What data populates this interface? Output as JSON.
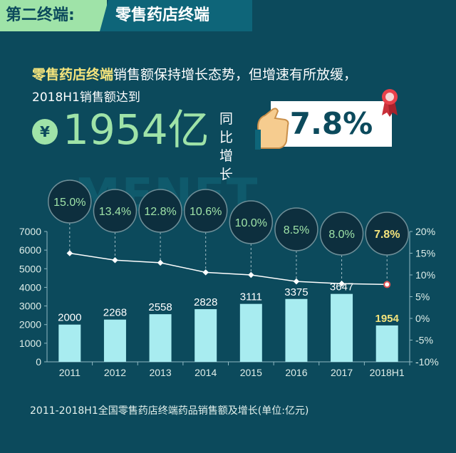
{
  "header": {
    "section": "第二终端:",
    "title": "零售药店终端"
  },
  "intro": {
    "highlight": "零售药店终端",
    "line1_rest": "销售额保持增长态势，但增速有所放缓，",
    "line2": "2018H1销售额达到"
  },
  "headline": {
    "currency_symbol": "¥",
    "amount": "1954亿",
    "yoy_label_top": "同比",
    "yoy_label_bottom": "增长",
    "yoy_value": "7.8%"
  },
  "watermark": "MENET",
  "caption": "2011-2018H1全国零售药店终端药品销售额及增长(单位:亿元)",
  "colors": {
    "background": "#0c4a5c",
    "bar": "#a8ecf0",
    "accent_green": "#9fe3a8",
    "highlight_yellow": "#f4e47c",
    "bubble": "#0d2f3e",
    "marker_last": "#e05050"
  },
  "chart_data": {
    "type": "bar",
    "categories": [
      "2011",
      "2012",
      "2013",
      "2014",
      "2015",
      "2016",
      "2017",
      "2018H1"
    ],
    "series": [
      {
        "type": "bar",
        "values": [
          2000,
          2268,
          2558,
          2828,
          3111,
          3375,
          3647,
          1954
        ],
        "labels": [
          "2000",
          "2268",
          "2558",
          "2828",
          "3111",
          "3375",
          "3647",
          "1954"
        ]
      },
      {
        "type": "line",
        "axis": "right",
        "values": [
          15.0,
          13.4,
          12.8,
          10.6,
          10.0,
          8.5,
          8.0,
          7.8
        ],
        "labels": [
          "15.0%",
          "13.4%",
          "12.8%",
          "10.6%",
          "10.0%",
          "8.5%",
          "8.0%",
          "7.8%"
        ]
      }
    ],
    "y_left": {
      "ylim": [
        0,
        7000
      ],
      "ticks": [
        "0",
        "1000",
        "2000",
        "3000",
        "4000",
        "5000",
        "6000",
        "7000"
      ]
    },
    "y_right": {
      "ylim": [
        -10,
        20
      ],
      "ticks": [
        "-10%",
        "-5%",
        "0%",
        "5%",
        "10%",
        "15%",
        "20%"
      ]
    },
    "highlight_last": true
  }
}
